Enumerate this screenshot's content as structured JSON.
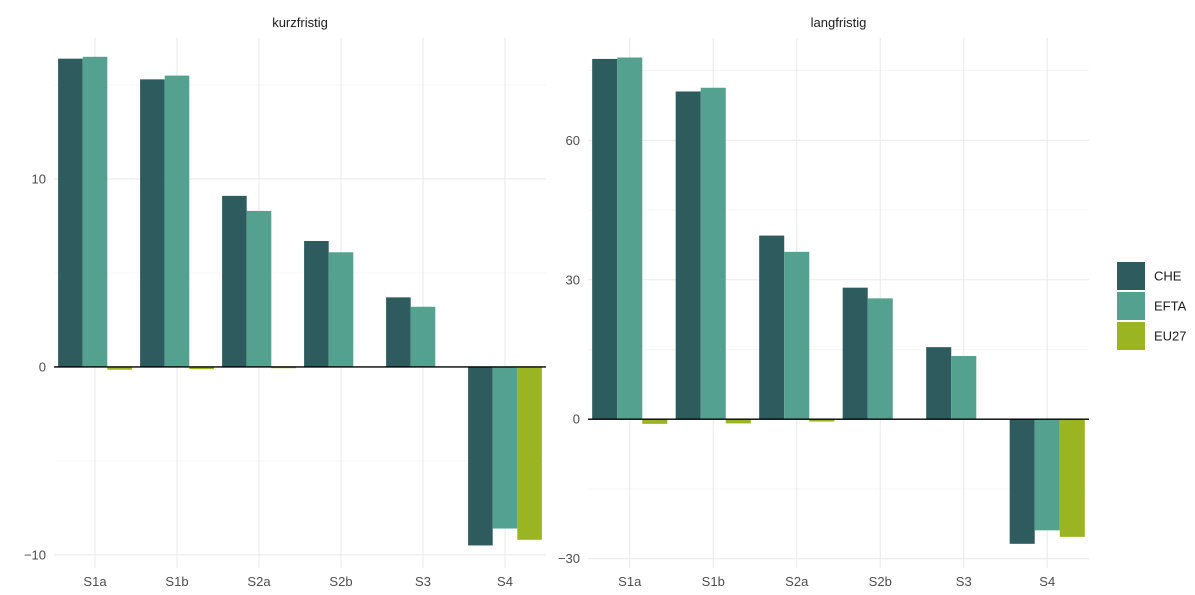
{
  "chart_data": {
    "type": "bar",
    "categories": [
      "S1a",
      "S1b",
      "S2a",
      "S2b",
      "S3",
      "S4"
    ],
    "legend": {
      "position": "right"
    },
    "grid": true,
    "colors": {
      "CHE": "#2e5b5e",
      "EFTA": "#55a18f",
      "EU27": "#9ab521"
    },
    "panels": [
      {
        "title": "kurzfristig",
        "ylim": [
          -10.7,
          17.5
        ],
        "yticks": [
          {
            "value": -10,
            "label": "−10"
          },
          {
            "value": 0,
            "label": "0"
          },
          {
            "value": 10,
            "label": "10"
          }
        ],
        "series": [
          {
            "name": "CHE",
            "values": [
              16.4,
              15.3,
              9.1,
              6.7,
              3.7,
              -9.5
            ]
          },
          {
            "name": "EFTA",
            "values": [
              16.5,
              15.5,
              8.3,
              6.1,
              3.2,
              -8.6
            ]
          },
          {
            "name": "EU27",
            "values": [
              -0.15,
              -0.12,
              -0.07,
              0,
              0,
              -9.2
            ]
          }
        ]
      },
      {
        "title": "langfristig",
        "ylim": [
          -32,
          82
        ],
        "yticks": [
          {
            "value": -30,
            "label": "−30"
          },
          {
            "value": 0,
            "label": "0"
          },
          {
            "value": 30,
            "label": "30"
          },
          {
            "value": 60,
            "label": "60"
          }
        ],
        "series": [
          {
            "name": "CHE",
            "values": [
              77.5,
              70.5,
              39.5,
              28.3,
              15.5,
              -26.8
            ]
          },
          {
            "name": "EFTA",
            "values": [
              77.8,
              71.3,
              36.0,
              26.0,
              13.6,
              -23.9
            ]
          },
          {
            "name": "EU27",
            "values": [
              -1.0,
              -0.9,
              -0.5,
              0,
              0,
              -25.3
            ]
          }
        ]
      }
    ]
  }
}
